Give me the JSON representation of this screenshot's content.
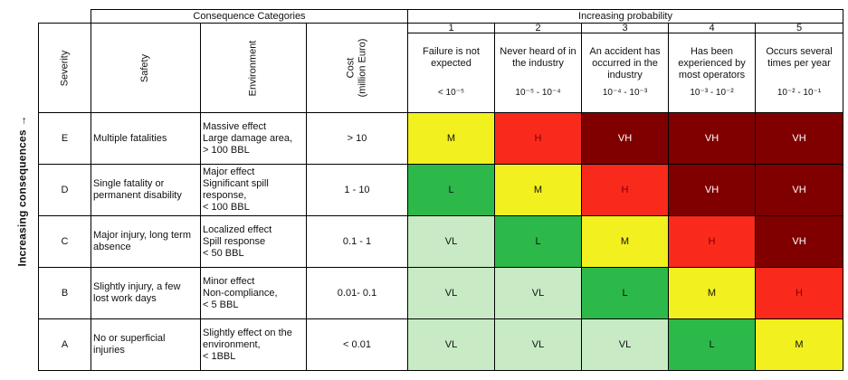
{
  "side_label": "Increasing consequences →",
  "header": {
    "consequence_categories": "Consequence Categories",
    "increasing_probability": "Increasing probability",
    "severity": "Severity",
    "safety": "Safety",
    "environment": "Environment",
    "cost_line1": "Cost",
    "cost_line2": "(million Euro)"
  },
  "probability": [
    {
      "num": "1",
      "desc": "Failure is not expected",
      "range": "< 10⁻⁵"
    },
    {
      "num": "2",
      "desc": "Never heard of in the industry",
      "range": "10⁻⁵ - 10⁻⁴"
    },
    {
      "num": "3",
      "desc": "An accident has occurred in the industry",
      "range": "10⁻⁴ - 10⁻³"
    },
    {
      "num": "4",
      "desc": "Has been experienced by most operators",
      "range": "10⁻³ - 10⁻²"
    },
    {
      "num": "5",
      "desc": "Occurs several times per year",
      "range": "10⁻² - 10⁻¹"
    }
  ],
  "rows": [
    {
      "severity": "E",
      "safety": "Multiple fatalities",
      "environment": [
        "Massive effect",
        "Large damage area,",
        "> 100 BBL"
      ],
      "cost": "> 10",
      "cells": [
        "M",
        "H",
        "VH",
        "VH",
        "VH"
      ]
    },
    {
      "severity": "D",
      "safety": "Single fatality or permanent disability",
      "environment": [
        "Major effect",
        "Significant spill",
        "response,",
        "< 100 BBL"
      ],
      "cost": "1 - 10",
      "cells": [
        "L",
        "M",
        "H",
        "VH",
        "VH"
      ]
    },
    {
      "severity": "C",
      "safety": "Major injury, long term absence",
      "environment": [
        "Localized effect",
        "Spill response",
        "< 50 BBL"
      ],
      "cost": "0.1 - 1",
      "cells": [
        "VL",
        "L",
        "M",
        "H",
        "VH"
      ]
    },
    {
      "severity": "B",
      "safety": "Slightly injury, a few lost work days",
      "environment": [
        "Minor effect",
        "Non-compliance,",
        "< 5 BBL"
      ],
      "cost": "0.01- 0.1",
      "cells": [
        "VL",
        "VL",
        "L",
        "M",
        "H"
      ]
    },
    {
      "severity": "A",
      "safety": "No or superficial injuries",
      "environment": [
        "Slightly effect on the",
        "environment,",
        "< 1BBL"
      ],
      "cost": "< 0.01",
      "cells": [
        "VL",
        "VL",
        "VL",
        "L",
        "M"
      ]
    }
  ],
  "colors": {
    "VL": "#c8ebc5",
    "L": "#2db84a",
    "M": "#f2f01e",
    "H": "#f92a1c",
    "VH": "#800000"
  }
}
